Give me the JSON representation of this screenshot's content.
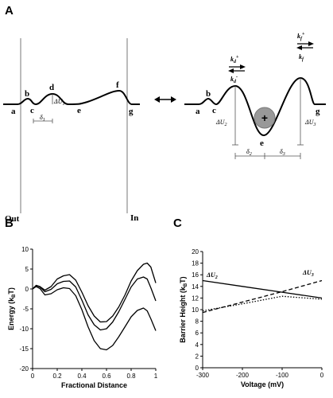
{
  "figure": {
    "panel_a": {
      "panel_label": "A",
      "left_profile": {
        "points": [
          "a",
          "b",
          "c",
          "d",
          "e",
          "f",
          "g"
        ],
        "delta_u1": "ΔU",
        "delta_u1_sub": "1",
        "delta1": "δ",
        "delta1_sub": "1",
        "out_label": "Out",
        "in_label": "In"
      },
      "right_profile": {
        "points": [
          "a",
          "b",
          "c",
          "e",
          "g"
        ],
        "kd_plus": "k",
        "kd_plus_sub": "d",
        "kd_plus_sup": "+",
        "kd_minus": "k",
        "kd_minus_sub": "d",
        "kd_minus_sup": "-",
        "kf_plus": "k",
        "kf_plus_sub": "f",
        "kf_plus_sup": "+",
        "kf_minus": "k",
        "kf_minus_sub": "f",
        "delta_u2": "ΔU",
        "delta_u2_sub": "2",
        "delta_u3": "ΔU",
        "delta_u3_sub": "3",
        "delta2": "δ",
        "delta2_sub": "2",
        "delta3": "δ",
        "delta3_sub": "3",
        "ion_sign": "+"
      }
    },
    "panel_b": {
      "panel_label": "B"
    },
    "panel_c": {
      "panel_label": "C",
      "annot_u2": "ΔU",
      "annot_u2_sub": "2",
      "annot_u3": "ΔU",
      "annot_u3_sub": "3"
    }
  },
  "chart_data": [
    {
      "type": "line",
      "panel": "B",
      "xlabel": "Fractional Distance",
      "ylabel": "Energy (k",
      "ylabel_sub": "B",
      "ylabel_end": "T)",
      "xlim": [
        0,
        1
      ],
      "ylim": [
        -20,
        10
      ],
      "xticks": [
        "0",
        "0.2",
        "0.4",
        "0.6",
        "0.8",
        "1"
      ],
      "yticks": [
        "10",
        "5",
        "0",
        "-5",
        "-10",
        "-15",
        "-20"
      ],
      "series": [
        {
          "x": [
            0,
            0.03,
            0.06,
            0.1,
            0.15,
            0.2,
            0.25,
            0.3,
            0.35,
            0.4,
            0.45,
            0.5,
            0.55,
            0.6,
            0.65,
            0.7,
            0.75,
            0.8,
            0.85,
            0.9,
            0.93,
            0.96,
            1.0
          ],
          "y": [
            0,
            0.9,
            0.6,
            -0.3,
            0.6,
            2.5,
            3.3,
            3.6,
            2.2,
            -0.8,
            -4.2,
            -6.8,
            -8.3,
            -8.2,
            -6.8,
            -4.5,
            -1.5,
            2.0,
            4.6,
            6.2,
            6.5,
            5.5,
            1.5
          ]
        },
        {
          "x": [
            0,
            0.03,
            0.06,
            0.1,
            0.15,
            0.2,
            0.25,
            0.3,
            0.35,
            0.4,
            0.45,
            0.5,
            0.55,
            0.6,
            0.65,
            0.7,
            0.75,
            0.8,
            0.85,
            0.9,
            0.93,
            0.96,
            1.0
          ],
          "y": [
            0,
            0.9,
            0.5,
            -0.7,
            -0.1,
            1.3,
            1.9,
            2.0,
            0.5,
            -2.8,
            -6.5,
            -9.0,
            -10.3,
            -10.0,
            -8.3,
            -5.7,
            -2.6,
            0.5,
            2.5,
            3.0,
            2.5,
            0.3,
            -3.0
          ]
        },
        {
          "x": [
            0,
            0.03,
            0.06,
            0.1,
            0.15,
            0.2,
            0.25,
            0.3,
            0.35,
            0.4,
            0.45,
            0.5,
            0.55,
            0.6,
            0.65,
            0.7,
            0.75,
            0.8,
            0.85,
            0.9,
            0.93,
            0.96,
            1.0
          ],
          "y": [
            0,
            0.6,
            0.1,
            -1.5,
            -1.2,
            -0.2,
            0.3,
            0.1,
            -1.7,
            -5.2,
            -9.5,
            -13.0,
            -15.0,
            -15.3,
            -14.2,
            -12.0,
            -9.5,
            -7.0,
            -5.4,
            -4.8,
            -5.5,
            -7.5,
            -10.5
          ]
        }
      ]
    },
    {
      "type": "line",
      "panel": "C",
      "xlabel": "Voltage (mV)",
      "ylabel": "Barrier Height (k",
      "ylabel_sub": "B",
      "ylabel_end": "T)",
      "xlim": [
        -300,
        0
      ],
      "ylim": [
        0,
        20
      ],
      "xticks": [
        "-300",
        "-200",
        "-100",
        "0"
      ],
      "yticks": [
        "20",
        "18",
        "16",
        "14",
        "12",
        "10",
        "8",
        "6",
        "4",
        "2",
        "0"
      ],
      "series": [
        {
          "x": [
            -300,
            -200,
            -100,
            0
          ],
          "y": [
            15.0,
            14.0,
            13.0,
            12.0
          ],
          "style": "solid"
        },
        {
          "x": [
            -300,
            -200,
            -100,
            0
          ],
          "y": [
            9.5,
            11.3,
            13.1,
            15.0
          ],
          "style": "dashed"
        },
        {
          "x": [
            -300,
            -200,
            -100,
            0
          ],
          "y": [
            9.8,
            11.0,
            12.3,
            11.8
          ],
          "style": "dotted"
        }
      ]
    }
  ]
}
